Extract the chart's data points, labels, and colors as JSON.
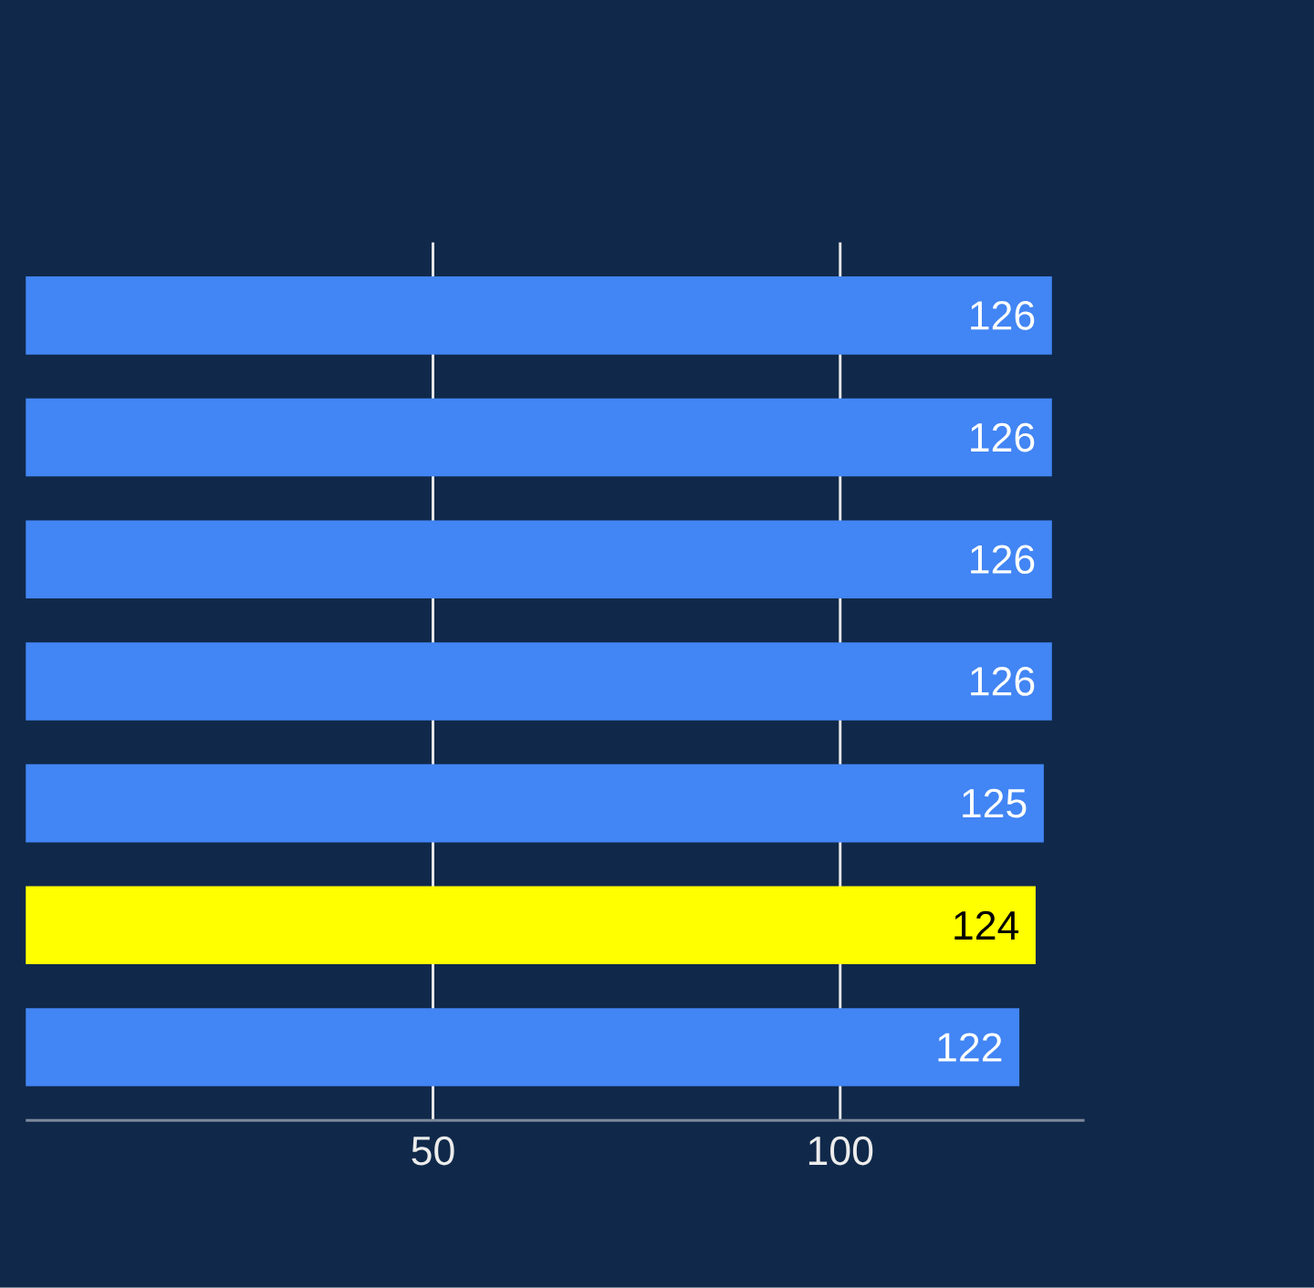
{
  "chart_data": {
    "type": "bar",
    "orientation": "horizontal",
    "categories": [
      null,
      null,
      null,
      null,
      null,
      null,
      null
    ],
    "values": [
      126,
      126,
      126,
      126,
      125,
      124,
      122
    ],
    "colors": [
      "#4285f4",
      "#4285f4",
      "#4285f4",
      "#4285f4",
      "#4285f4",
      "#ffff00",
      "#4285f4"
    ],
    "xlim": [
      0,
      130
    ],
    "xticks": [
      50,
      100
    ],
    "grid": "x",
    "data_labels": true
  }
}
